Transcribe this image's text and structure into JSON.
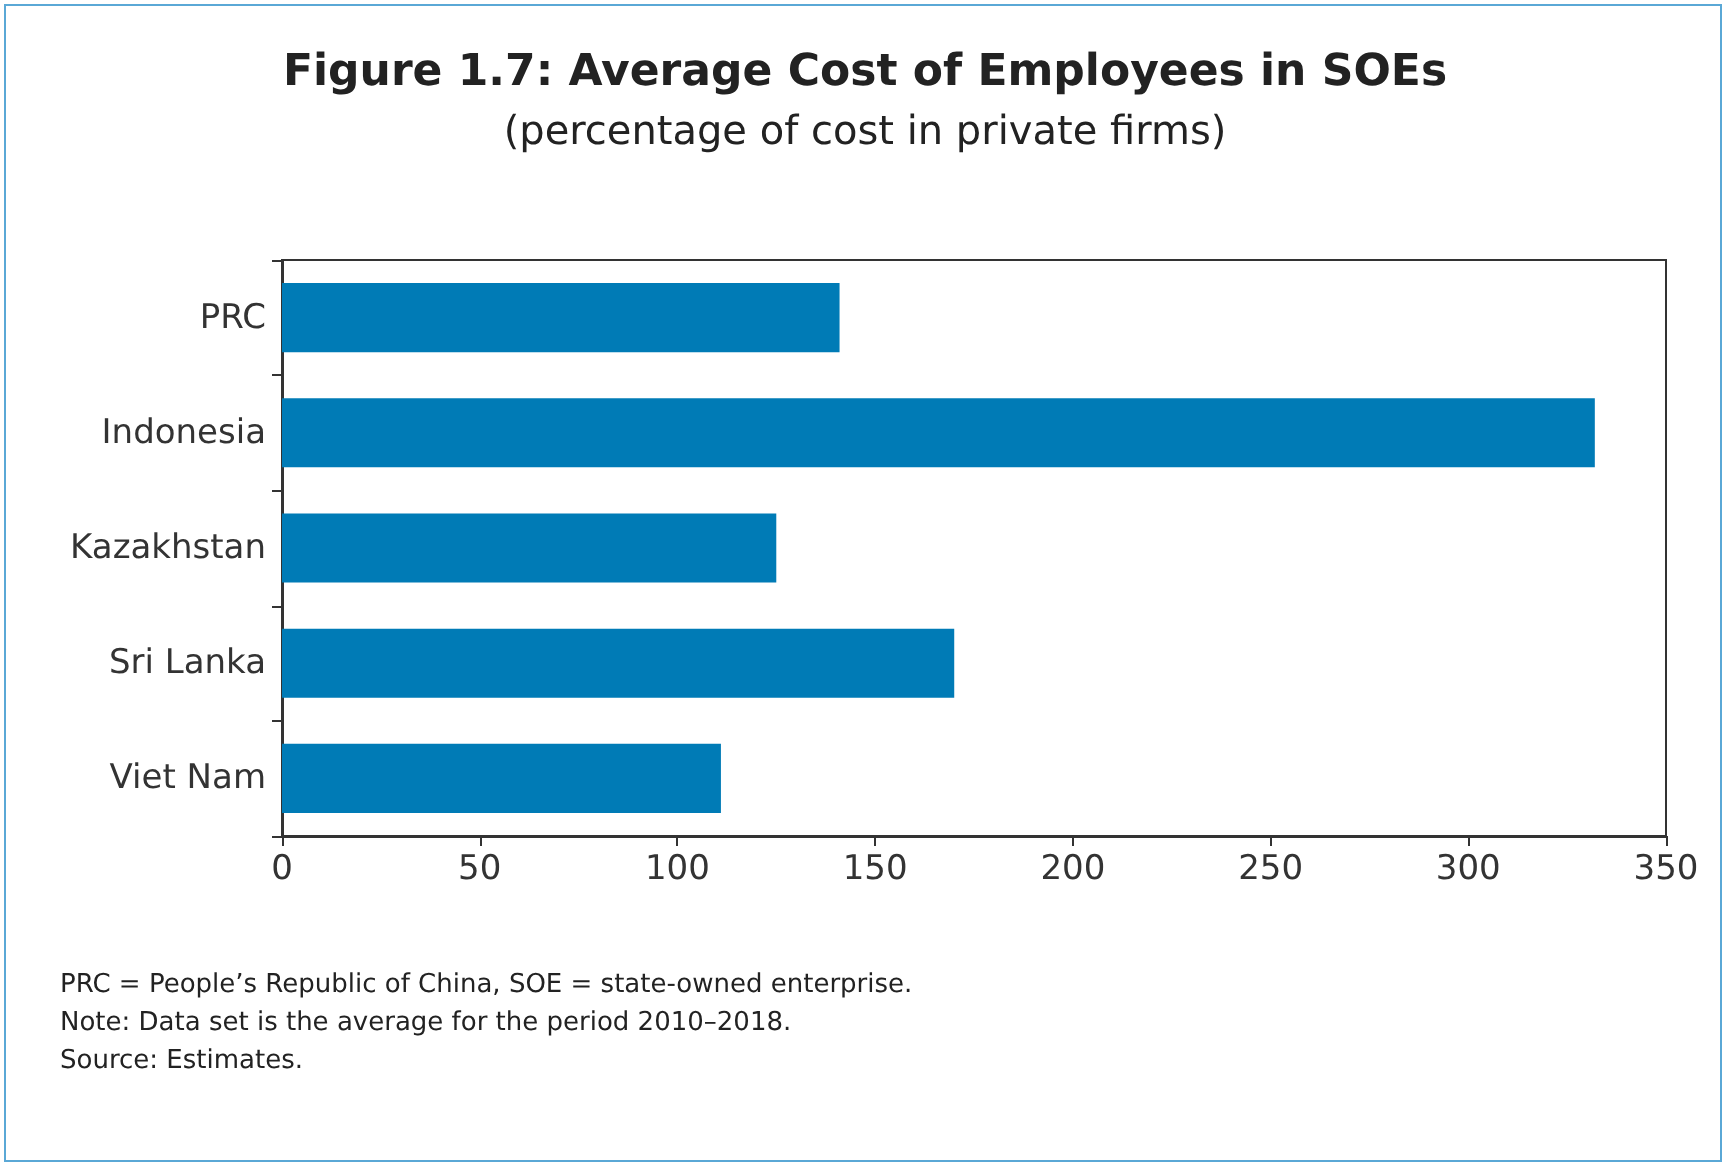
{
  "chart_data": {
    "type": "bar",
    "orientation": "horizontal",
    "title": "Figure 1.7: Average Cost of Employees in SOEs",
    "subtitle": "(percentage of cost in private firms)",
    "categories": [
      "PRC",
      "Indonesia",
      "Kazakhstan",
      "Sri Lanka",
      "Viet Nam"
    ],
    "values": [
      141,
      332,
      125,
      170,
      111
    ],
    "color": "#007bb6",
    "xlim": [
      0,
      350
    ],
    "xticks": [
      0,
      50,
      100,
      150,
      200,
      250,
      300,
      350
    ],
    "grid": false,
    "annotations": [
      "PRC = People’s Republic of China, SOE = state-owned enterprise.",
      "Note: Data set is the average for the period 2010–2018.",
      "Source: Estimates."
    ]
  }
}
